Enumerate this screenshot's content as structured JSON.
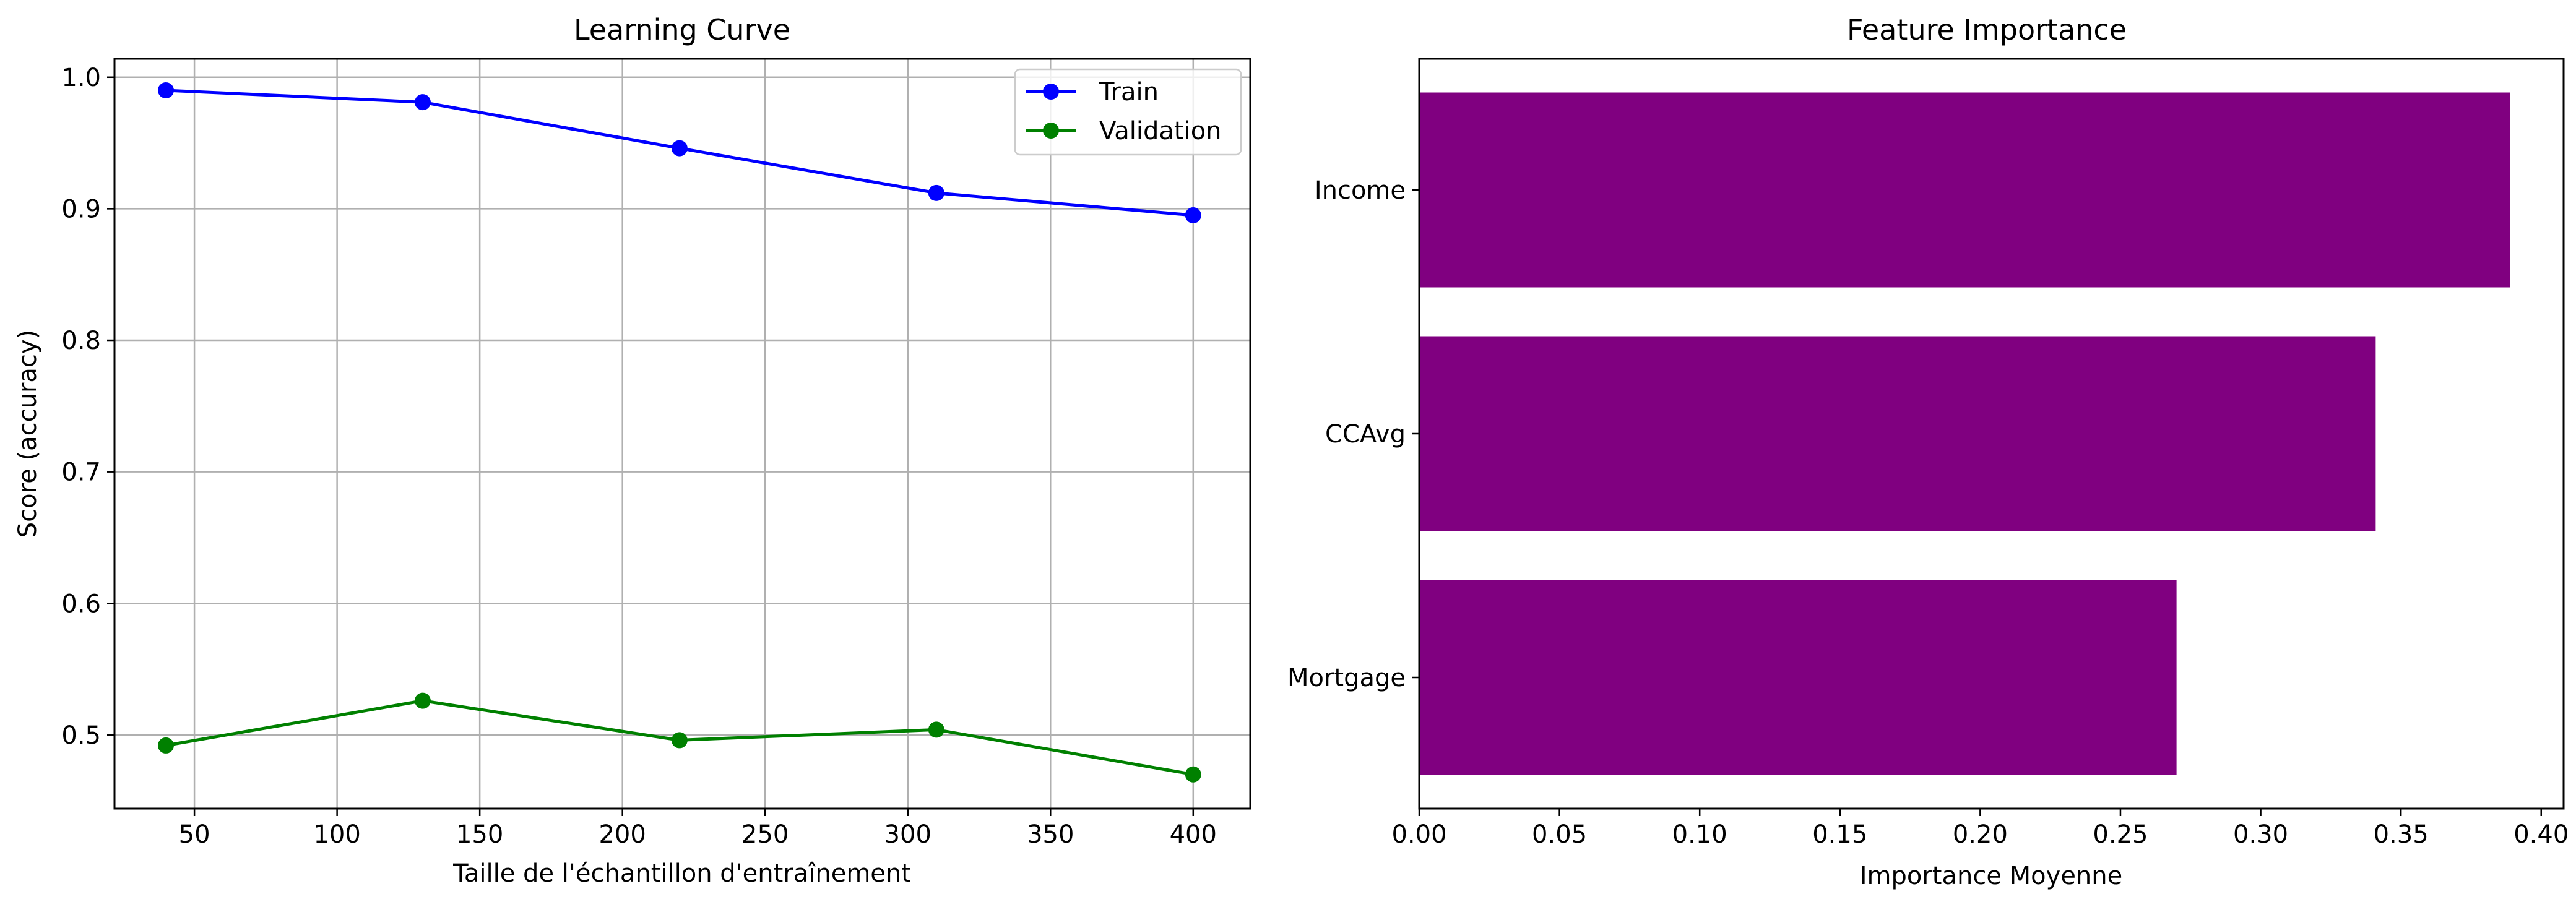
{
  "chart_data": [
    {
      "type": "line",
      "title": "Learning Curve",
      "xlabel": "Taille de l'échantillon d'entraînement",
      "ylabel": "Score (accuracy)",
      "xlim": [
        22,
        420
      ],
      "ylim": [
        0.444,
        1.014
      ],
      "xticks": [
        50,
        100,
        150,
        200,
        250,
        300,
        350,
        400
      ],
      "yticks": [
        0.5,
        0.6,
        0.7,
        0.8,
        0.9,
        1.0
      ],
      "ytick_labels": [
        "0.5",
        "0.6",
        "0.7",
        "0.8",
        "0.9",
        "1.0"
      ],
      "grid": true,
      "legend_position": "top-right",
      "x": [
        40,
        130,
        220,
        310,
        400
      ],
      "series": [
        {
          "name": "Train",
          "color": "#0000ff",
          "marker": "circle",
          "values": [
            0.99,
            0.981,
            0.946,
            0.912,
            0.895
          ]
        },
        {
          "name": "Validation",
          "color": "#008000",
          "marker": "circle",
          "values": [
            0.492,
            0.526,
            0.496,
            0.504,
            0.47
          ]
        }
      ]
    },
    {
      "type": "bar",
      "orientation": "horizontal",
      "title": "Feature Importance",
      "xlabel": "Importance Moyenne",
      "ylabel": "",
      "categories": [
        "Mortgage",
        "CCAvg",
        "Income"
      ],
      "values": [
        0.27,
        0.341,
        0.389
      ],
      "color": "#800080",
      "xlim": [
        0,
        0.408
      ],
      "xticks": [
        0.0,
        0.05,
        0.1,
        0.15,
        0.2,
        0.25,
        0.3,
        0.35,
        0.4
      ],
      "xtick_labels": [
        "0.00",
        "0.05",
        "0.10",
        "0.15",
        "0.20",
        "0.25",
        "0.30",
        "0.35",
        "0.40"
      ],
      "grid": false
    }
  ]
}
